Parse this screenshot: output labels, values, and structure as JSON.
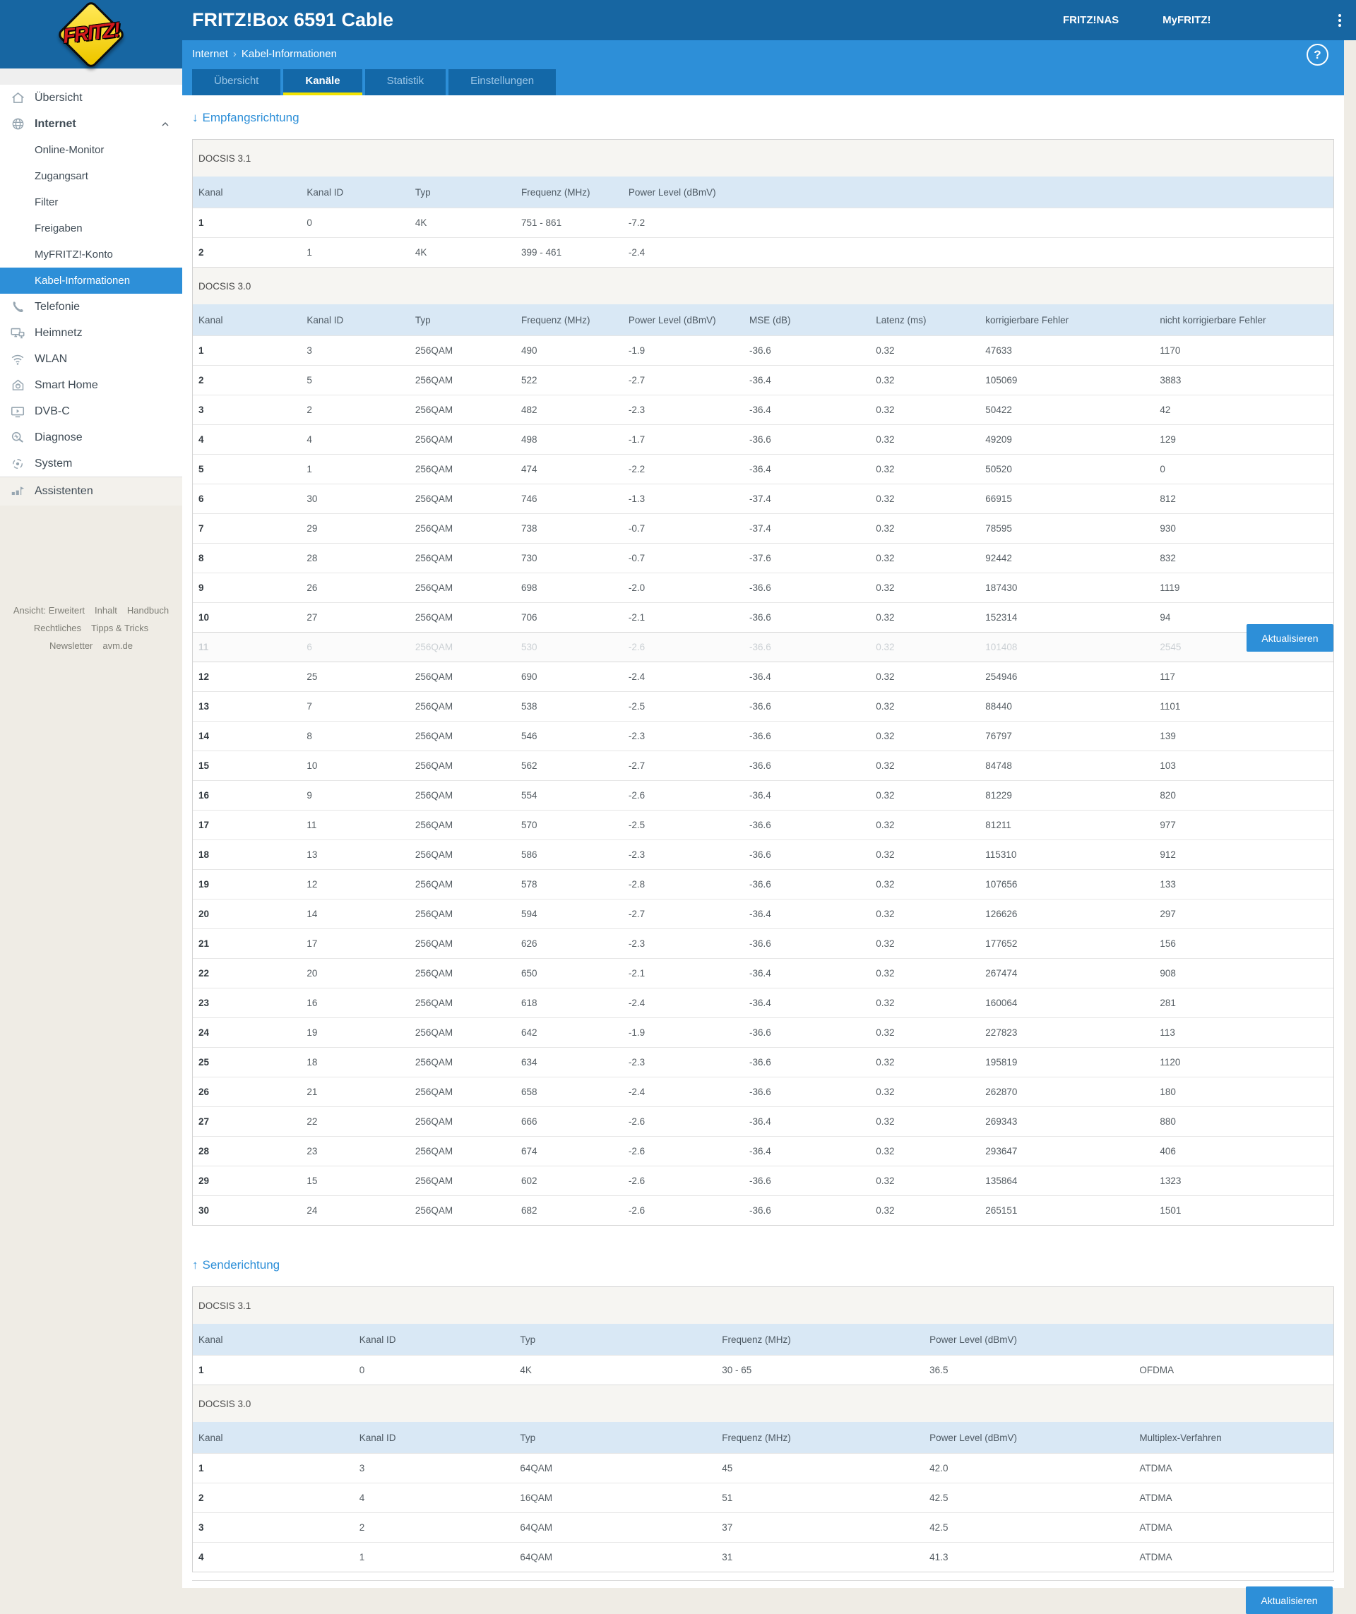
{
  "header": {
    "logo_text": "FRITZ!",
    "title": "FRITZ!Box 6591 Cable",
    "links": [
      "FRITZ!NAS",
      "MyFRITZ!"
    ]
  },
  "breadcrumb": {
    "section": "Internet",
    "separator": "›",
    "page": "Kabel-Informationen"
  },
  "help": {
    "label": "?"
  },
  "tabs": [
    {
      "id": "uebersicht",
      "label": "Übersicht",
      "active": false
    },
    {
      "id": "kanaele",
      "label": "Kanäle",
      "active": true
    },
    {
      "id": "statistik",
      "label": "Statistik",
      "active": false
    },
    {
      "id": "einstellungen",
      "label": "Einstellungen",
      "active": false
    }
  ],
  "sidebar": {
    "items": [
      {
        "id": "uebersicht",
        "label": "Übersicht",
        "icon": "home",
        "level": 0
      },
      {
        "id": "internet",
        "label": "Internet",
        "icon": "globe",
        "level": 0,
        "bold": true,
        "expanded": true
      },
      {
        "id": "online-monitor",
        "label": "Online-Monitor",
        "level": 1
      },
      {
        "id": "zugangsart",
        "label": "Zugangsart",
        "level": 1
      },
      {
        "id": "filter",
        "label": "Filter",
        "level": 1
      },
      {
        "id": "freigaben",
        "label": "Freigaben",
        "level": 1
      },
      {
        "id": "myfritz-konto",
        "label": "MyFRITZ!-Konto",
        "level": 1
      },
      {
        "id": "kabel-informationen",
        "label": "Kabel-Informationen",
        "level": 1,
        "active": true
      },
      {
        "id": "telefonie",
        "label": "Telefonie",
        "icon": "phone",
        "level": 0
      },
      {
        "id": "heimnetz",
        "label": "Heimnetz",
        "icon": "network",
        "level": 0
      },
      {
        "id": "wlan",
        "label": "WLAN",
        "icon": "wifi",
        "level": 0
      },
      {
        "id": "smart-home",
        "label": "Smart Home",
        "icon": "smarthome",
        "level": 0
      },
      {
        "id": "dvb-c",
        "label": "DVB-C",
        "icon": "tv",
        "level": 0
      },
      {
        "id": "diagnose",
        "label": "Diagnose",
        "icon": "diagnose",
        "level": 0
      },
      {
        "id": "system",
        "label": "System",
        "icon": "system",
        "level": 0
      },
      {
        "id": "assistenten",
        "label": "Assistenten",
        "icon": "assistant",
        "level": 0,
        "assist": true
      }
    ]
  },
  "sidebar_footer": {
    "lines": [
      [
        "Ansicht: Erweitert",
        "Inhalt",
        "Handbuch"
      ],
      [
        "Rechtliches",
        "Tipps & Tricks"
      ],
      [
        "Newsletter",
        "avm.de"
      ]
    ]
  },
  "downstream": {
    "arrow": "↓",
    "heading": "Empfangsrichtung",
    "sections": [
      {
        "label": "DOCSIS 3.1",
        "columns": [
          "Kanal",
          "Kanal ID",
          "Typ",
          "Frequenz (MHz)",
          "Power Level (dBmV)"
        ],
        "rows": [
          [
            "1",
            "0",
            "4K",
            "751 - 861",
            "-7.2"
          ],
          [
            "2",
            "1",
            "4K",
            "399 - 461",
            "-2.4"
          ]
        ]
      },
      {
        "label": "DOCSIS 3.0",
        "columns": [
          "Kanal",
          "Kanal ID",
          "Typ",
          "Frequenz (MHz)",
          "Power Level (dBmV)",
          "MSE (dB)",
          "Latenz (ms)",
          "korrigierbare Fehler",
          "nicht korrigierbare Fehler"
        ],
        "refreshing_row": 10,
        "rows": [
          [
            "1",
            "3",
            "256QAM",
            "490",
            "-1.9",
            "-36.6",
            "0.32",
            "47633",
            "1170"
          ],
          [
            "2",
            "5",
            "256QAM",
            "522",
            "-2.7",
            "-36.4",
            "0.32",
            "105069",
            "3883"
          ],
          [
            "3",
            "2",
            "256QAM",
            "482",
            "-2.3",
            "-36.4",
            "0.32",
            "50422",
            "42"
          ],
          [
            "4",
            "4",
            "256QAM",
            "498",
            "-1.7",
            "-36.6",
            "0.32",
            "49209",
            "129"
          ],
          [
            "5",
            "1",
            "256QAM",
            "474",
            "-2.2",
            "-36.4",
            "0.32",
            "50520",
            "0"
          ],
          [
            "6",
            "30",
            "256QAM",
            "746",
            "-1.3",
            "-37.4",
            "0.32",
            "66915",
            "812"
          ],
          [
            "7",
            "29",
            "256QAM",
            "738",
            "-0.7",
            "-37.4",
            "0.32",
            "78595",
            "930"
          ],
          [
            "8",
            "28",
            "256QAM",
            "730",
            "-0.7",
            "-37.6",
            "0.32",
            "92442",
            "832"
          ],
          [
            "9",
            "26",
            "256QAM",
            "698",
            "-2.0",
            "-36.6",
            "0.32",
            "187430",
            "1119"
          ],
          [
            "10",
            "27",
            "256QAM",
            "706",
            "-2.1",
            "-36.6",
            "0.32",
            "152314",
            "94"
          ],
          [
            "11",
            "6",
            "256QAM",
            "530",
            "-2.6",
            "-36.6",
            "0.32",
            "101408",
            "2545"
          ],
          [
            "12",
            "25",
            "256QAM",
            "690",
            "-2.4",
            "-36.4",
            "0.32",
            "254946",
            "117"
          ],
          [
            "13",
            "7",
            "256QAM",
            "538",
            "-2.5",
            "-36.6",
            "0.32",
            "88440",
            "1101"
          ],
          [
            "14",
            "8",
            "256QAM",
            "546",
            "-2.3",
            "-36.6",
            "0.32",
            "76797",
            "139"
          ],
          [
            "15",
            "10",
            "256QAM",
            "562",
            "-2.7",
            "-36.6",
            "0.32",
            "84748",
            "103"
          ],
          [
            "16",
            "9",
            "256QAM",
            "554",
            "-2.6",
            "-36.4",
            "0.32",
            "81229",
            "820"
          ],
          [
            "17",
            "11",
            "256QAM",
            "570",
            "-2.5",
            "-36.6",
            "0.32",
            "81211",
            "977"
          ],
          [
            "18",
            "13",
            "256QAM",
            "586",
            "-2.3",
            "-36.6",
            "0.32",
            "115310",
            "912"
          ],
          [
            "19",
            "12",
            "256QAM",
            "578",
            "-2.8",
            "-36.6",
            "0.32",
            "107656",
            "133"
          ],
          [
            "20",
            "14",
            "256QAM",
            "594",
            "-2.7",
            "-36.4",
            "0.32",
            "126626",
            "297"
          ],
          [
            "21",
            "17",
            "256QAM",
            "626",
            "-2.3",
            "-36.6",
            "0.32",
            "177652",
            "156"
          ],
          [
            "22",
            "20",
            "256QAM",
            "650",
            "-2.1",
            "-36.4",
            "0.32",
            "267474",
            "908"
          ],
          [
            "23",
            "16",
            "256QAM",
            "618",
            "-2.4",
            "-36.4",
            "0.32",
            "160064",
            "281"
          ],
          [
            "24",
            "19",
            "256QAM",
            "642",
            "-1.9",
            "-36.6",
            "0.32",
            "227823",
            "113"
          ],
          [
            "25",
            "18",
            "256QAM",
            "634",
            "-2.3",
            "-36.6",
            "0.32",
            "195819",
            "1120"
          ],
          [
            "26",
            "21",
            "256QAM",
            "658",
            "-2.4",
            "-36.6",
            "0.32",
            "262870",
            "180"
          ],
          [
            "27",
            "22",
            "256QAM",
            "666",
            "-2.6",
            "-36.4",
            "0.32",
            "269343",
            "880"
          ],
          [
            "28",
            "23",
            "256QAM",
            "674",
            "-2.6",
            "-36.4",
            "0.32",
            "293647",
            "406"
          ],
          [
            "29",
            "15",
            "256QAM",
            "602",
            "-2.6",
            "-36.6",
            "0.32",
            "135864",
            "1323"
          ],
          [
            "30",
            "24",
            "256QAM",
            "682",
            "-2.6",
            "-36.6",
            "0.32",
            "265151",
            "1501"
          ]
        ]
      }
    ]
  },
  "upstream": {
    "arrow": "↑",
    "heading": "Senderichtung",
    "sections": [
      {
        "label": "DOCSIS 3.1",
        "columns": [
          "Kanal",
          "Kanal ID",
          "Typ",
          "Frequenz (MHz)",
          "Power Level (dBmV)",
          ""
        ],
        "rows": [
          [
            "1",
            "0",
            "4K",
            "30 - 65",
            "36.5",
            "OFDMA"
          ]
        ]
      },
      {
        "label": "DOCSIS 3.0",
        "columns": [
          "Kanal",
          "Kanal ID",
          "Typ",
          "Frequenz (MHz)",
          "Power Level (dBmV)",
          "Multiplex-Verfahren"
        ],
        "rows": [
          [
            "1",
            "3",
            "64QAM",
            "45",
            "42.0",
            "ATDMA"
          ],
          [
            "2",
            "4",
            "16QAM",
            "51",
            "42.5",
            "ATDMA"
          ],
          [
            "3",
            "2",
            "64QAM",
            "37",
            "42.5",
            "ATDMA"
          ],
          [
            "4",
            "1",
            "64QAM",
            "31",
            "41.3",
            "ATDMA"
          ]
        ]
      }
    ]
  },
  "buttons": {
    "refresh": "Aktualisieren"
  }
}
